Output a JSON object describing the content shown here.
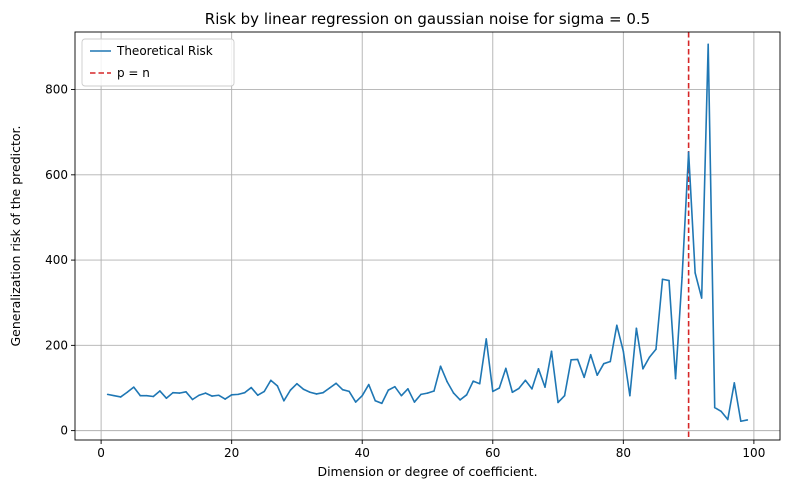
{
  "chart_data": {
    "type": "line",
    "title": "Risk by linear regression on gaussian noise for sigma = 0.5",
    "xlabel": "Dimension or degree of coefficient.",
    "ylabel": "Generalization risk of the predictor.",
    "xlim": [
      -4,
      104
    ],
    "ylim": [
      -22,
      935
    ],
    "xticks": [
      0,
      20,
      40,
      60,
      80,
      100
    ],
    "yticks": [
      0,
      200,
      400,
      600,
      800
    ],
    "grid": true,
    "legend_position": "top-left",
    "series": [
      {
        "name": "Theoretical Risk",
        "color": "#1f77b4",
        "style": "solid",
        "x": [
          1,
          2,
          3,
          4,
          5,
          6,
          7,
          8,
          9,
          10,
          11,
          12,
          13,
          14,
          15,
          16,
          17,
          18,
          19,
          20,
          21,
          22,
          23,
          24,
          25,
          26,
          27,
          28,
          29,
          30,
          31,
          32,
          33,
          34,
          35,
          36,
          37,
          38,
          39,
          40,
          41,
          42,
          43,
          44,
          45,
          46,
          47,
          48,
          49,
          50,
          51,
          52,
          53,
          54,
          55,
          56,
          57,
          58,
          59,
          60,
          61,
          62,
          63,
          64,
          65,
          66,
          67,
          68,
          69,
          70,
          71,
          72,
          73,
          74,
          75,
          76,
          77,
          78,
          79,
          80,
          81,
          82,
          83,
          84,
          85,
          86,
          87,
          88,
          89,
          90,
          91,
          92,
          93,
          94,
          95,
          96,
          97,
          98,
          99
        ],
        "y": [
          85,
          82,
          79,
          90,
          102,
          82,
          82,
          80,
          93,
          76,
          89,
          88,
          91,
          73,
          83,
          88,
          81,
          83,
          74,
          84,
          85,
          89,
          101,
          83,
          92,
          118,
          105,
          70,
          95,
          110,
          97,
          90,
          86,
          89,
          100,
          111,
          96,
          92,
          67,
          82,
          108,
          70,
          64,
          95,
          103,
          82,
          98,
          67,
          85,
          88,
          93,
          151,
          115,
          88,
          72,
          84,
          116,
          110,
          215,
          92,
          100,
          146,
          90,
          99,
          118,
          98,
          145,
          102,
          186,
          66,
          82,
          166,
          167,
          125,
          178,
          130,
          157,
          162,
          247,
          186,
          82,
          240,
          145,
          172,
          191,
          355,
          352,
          122,
          360,
          653,
          370,
          311,
          906,
          54,
          45,
          26,
          112,
          22,
          25
        ]
      }
    ],
    "reference_lines": [
      {
        "name": "p = n",
        "orientation": "vertical",
        "x": 90,
        "color": "#d62728",
        "style": "dashed"
      }
    ]
  }
}
